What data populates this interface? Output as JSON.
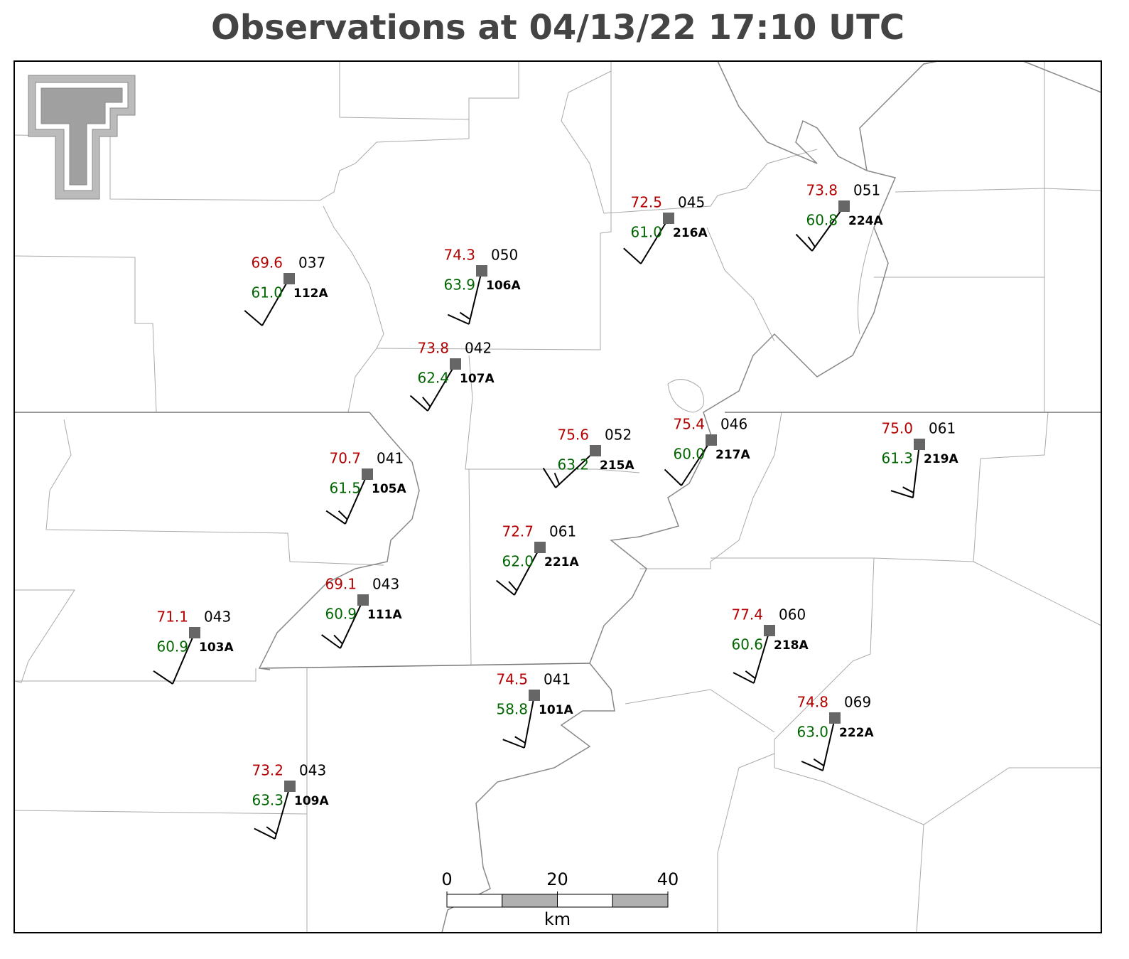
{
  "title": "Observations at 04/13/22 17:10 UTC",
  "stations": [
    {
      "temperature": "69.6",
      "pressure": "037",
      "dewpoint": "61.0",
      "id": "112A"
    },
    {
      "temperature": "74.3",
      "pressure": "050",
      "dewpoint": "63.9",
      "id": "106A"
    },
    {
      "temperature": "73.8",
      "pressure": "042",
      "dewpoint": "62.4",
      "id": "107A"
    },
    {
      "temperature": "72.5",
      "pressure": "045",
      "dewpoint": "61.0",
      "id": "216A"
    },
    {
      "temperature": "73.8",
      "pressure": "051",
      "dewpoint": "60.8",
      "id": "224A"
    },
    {
      "temperature": "75.6",
      "pressure": "052",
      "dewpoint": "63.2",
      "id": "215A"
    },
    {
      "temperature": "75.4",
      "pressure": "046",
      "dewpoint": "60.0",
      "id": "217A"
    },
    {
      "temperature": "75.0",
      "pressure": "061",
      "dewpoint": "61.3",
      "id": "219A"
    },
    {
      "temperature": "70.7",
      "pressure": "041",
      "dewpoint": "61.5",
      "id": "105A"
    },
    {
      "temperature": "72.7",
      "pressure": "061",
      "dewpoint": "62.0",
      "id": "221A"
    },
    {
      "temperature": "69.1",
      "pressure": "043",
      "dewpoint": "60.9",
      "id": "111A"
    },
    {
      "temperature": "71.1",
      "pressure": "043",
      "dewpoint": "60.9",
      "id": "103A"
    },
    {
      "temperature": "77.4",
      "pressure": "060",
      "dewpoint": "60.6",
      "id": "218A"
    },
    {
      "temperature": "74.5",
      "pressure": "041",
      "dewpoint": "58.8",
      "id": "101A"
    },
    {
      "temperature": "74.8",
      "pressure": "069",
      "dewpoint": "63.0",
      "id": "222A"
    },
    {
      "temperature": "73.2",
      "pressure": "043",
      "dewpoint": "63.3",
      "id": "109A"
    }
  ],
  "scale_bar": {
    "ticks": [
      0,
      20,
      40
    ],
    "unit": "km"
  }
}
